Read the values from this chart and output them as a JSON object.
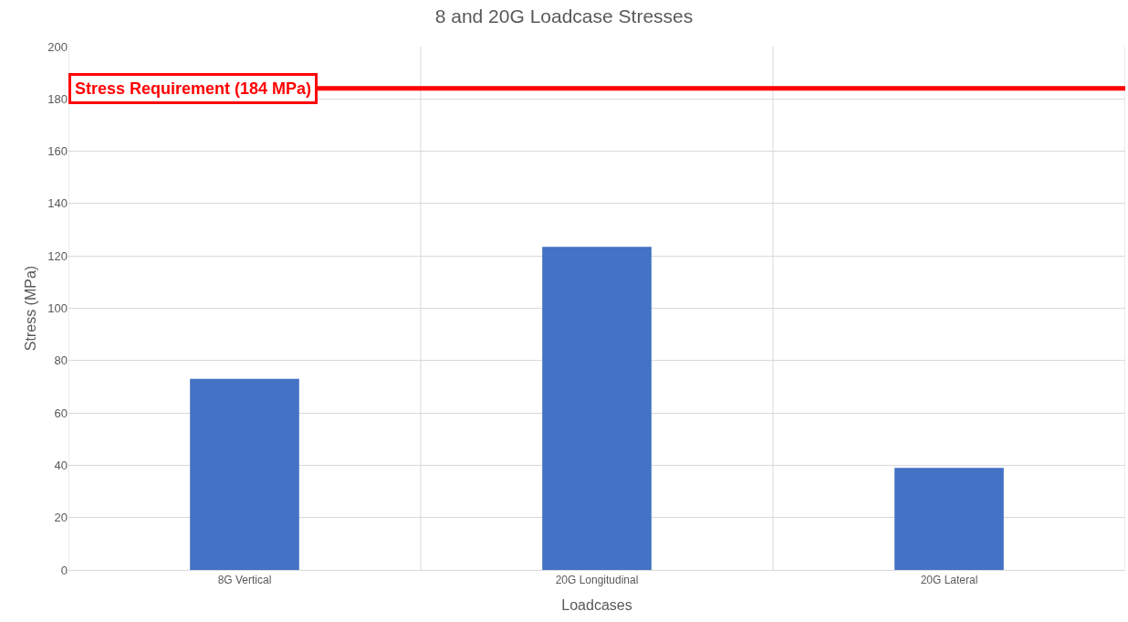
{
  "chart_data": {
    "type": "bar",
    "title": "8 and 20G Loadcase Stresses",
    "xlabel": "Loadcases",
    "ylabel": "Stress (MPa)",
    "categories": [
      "8G Vertical",
      "20G Longitudinal",
      "20G Lateral"
    ],
    "values": [
      73,
      123.5,
      39
    ],
    "color": "#4472c4",
    "ylim": [
      0,
      200
    ],
    "yticks": [
      0,
      20,
      40,
      60,
      80,
      100,
      120,
      140,
      160,
      180,
      200
    ],
    "grid": true,
    "ref_lines": [
      {
        "axis": "y",
        "value": 184,
        "label": "Stress Requirement (184 MPa)",
        "color": "#ff0000"
      }
    ]
  }
}
